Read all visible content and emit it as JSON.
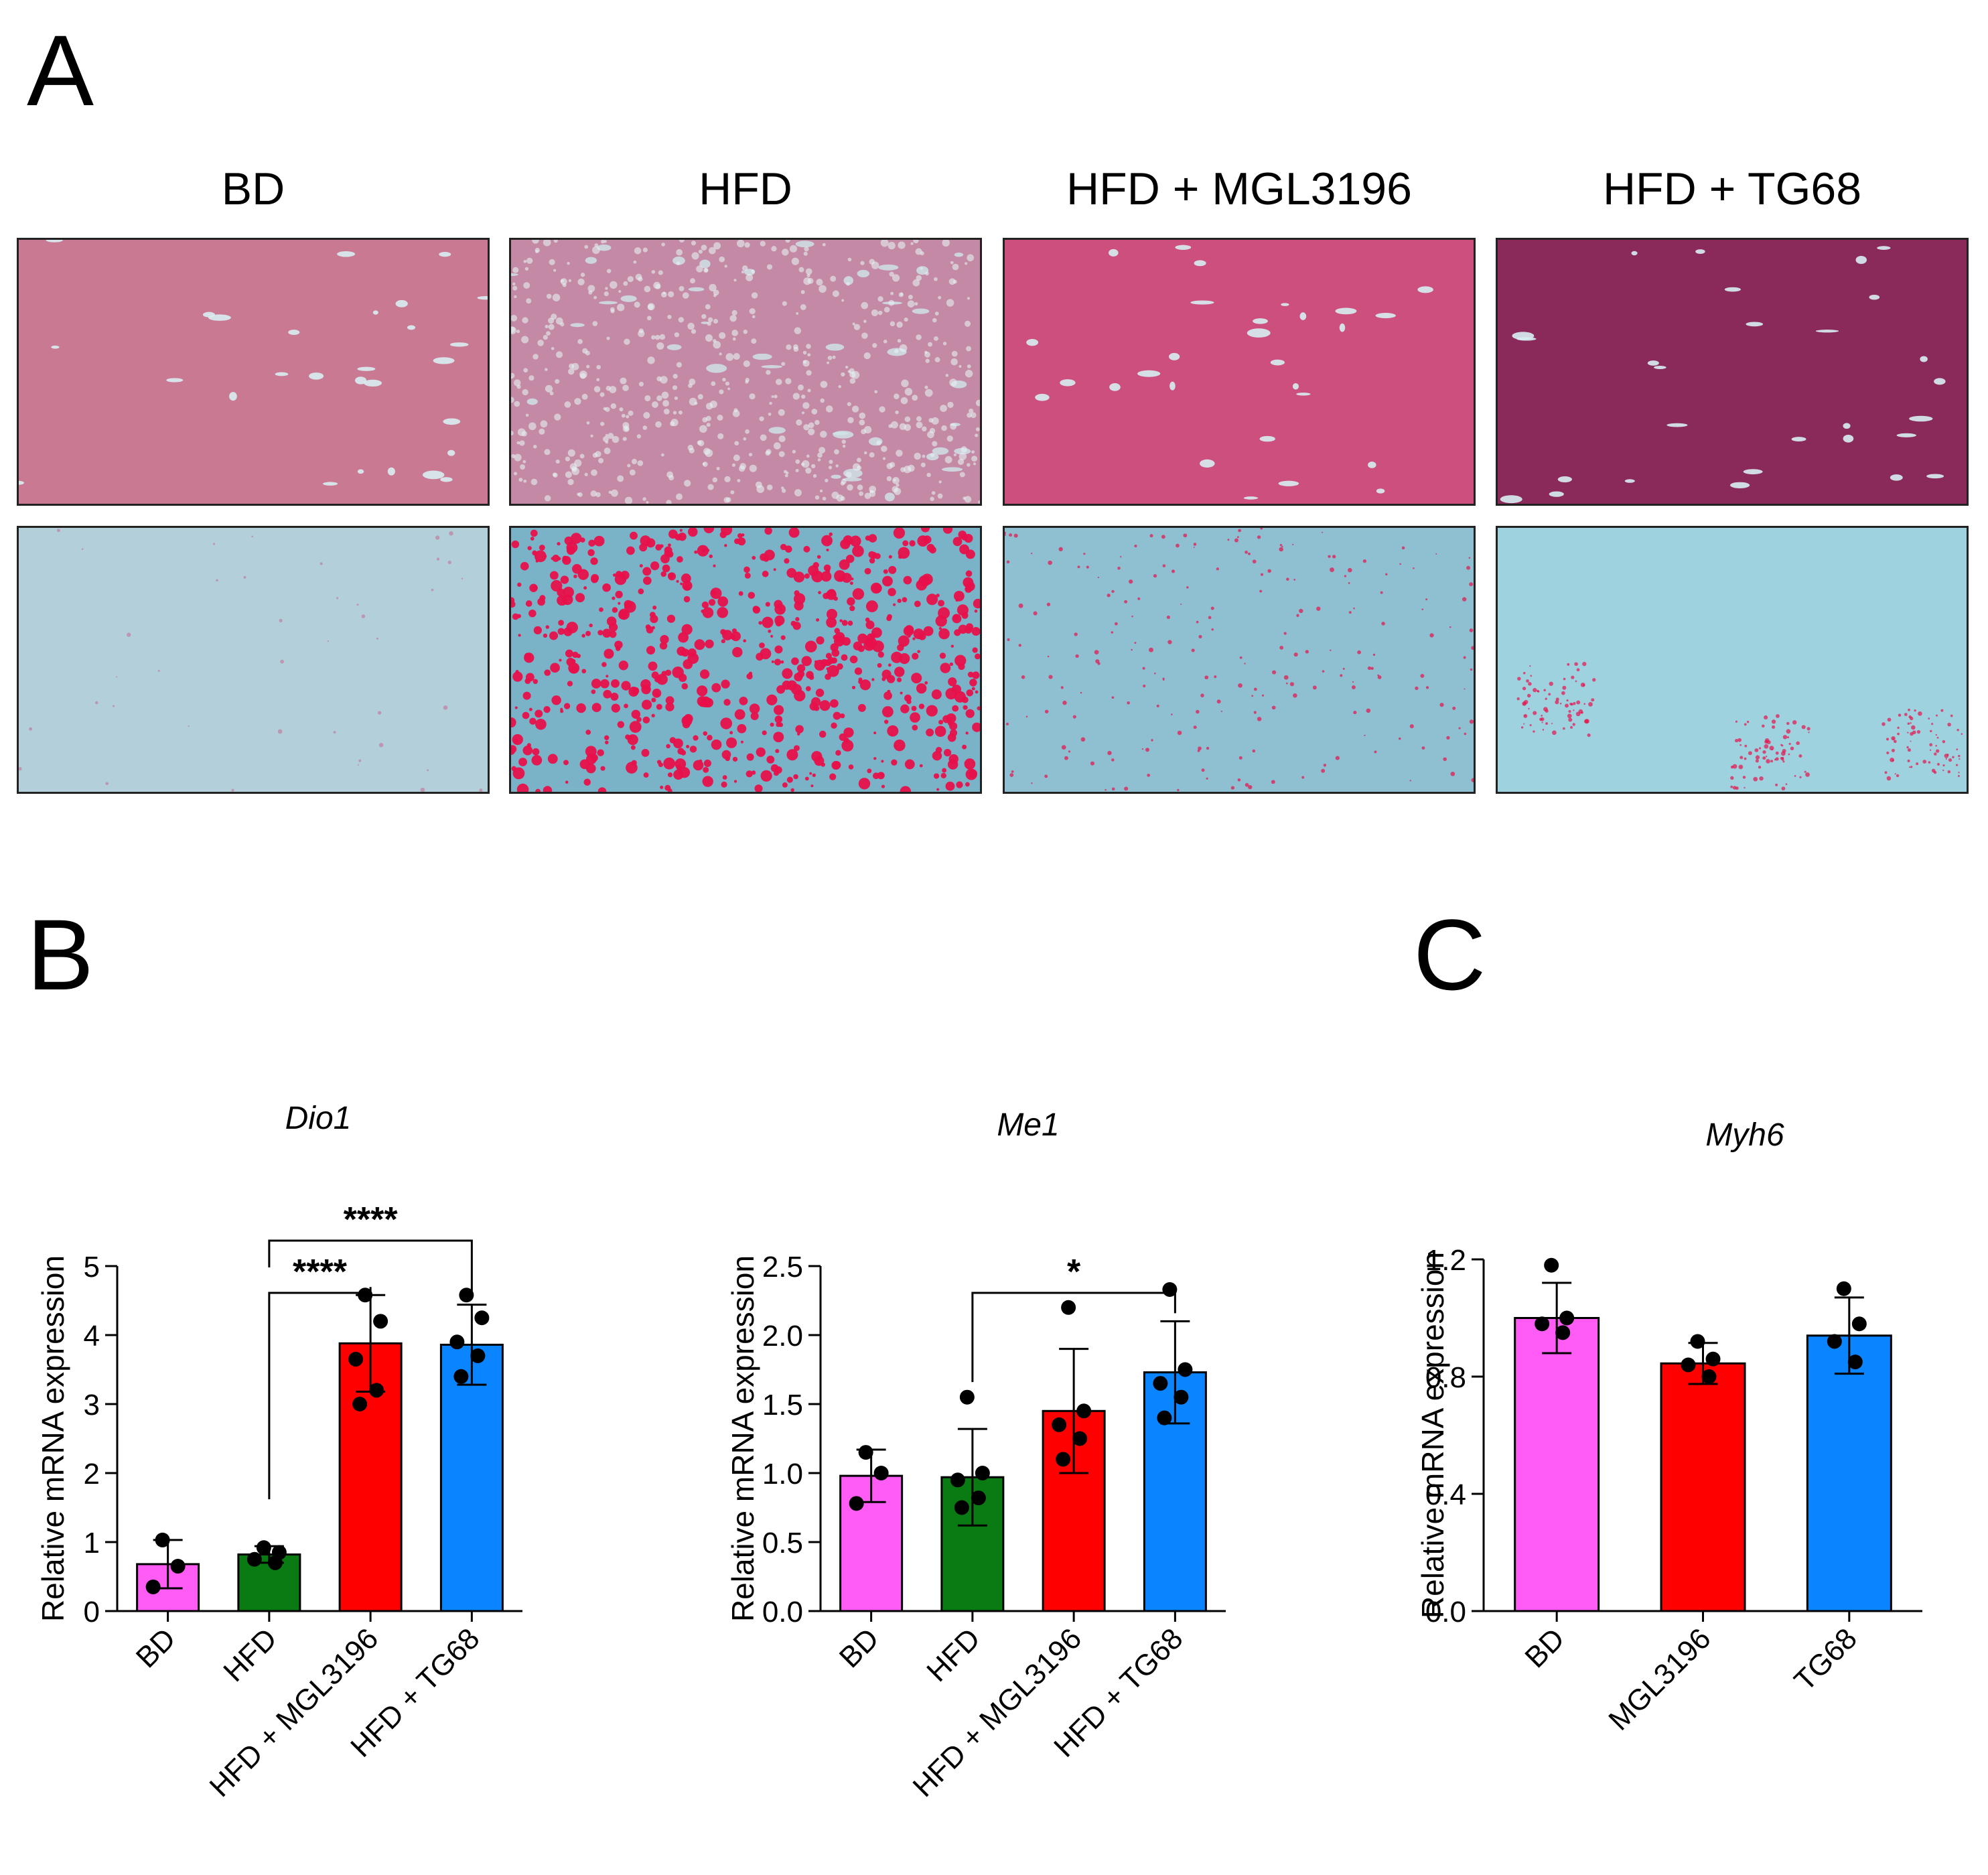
{
  "panels": {
    "A": {
      "letter": "A",
      "columns": [
        {
          "label": "BD",
          "tissue": "lightly stained, few small vessels"
        },
        {
          "label": "HFD",
          "tissue": "vacuolated, heavy lipid droplets"
        },
        {
          "label": "HFD + MGL3196",
          "tissue": "pink parenchyma, scattered vessels"
        },
        {
          "label": "HFD + TG68",
          "tissue": "dark magenta parenchyma, scattered vessels"
        }
      ],
      "rows": [
        "H&E-like stain",
        "lipid stain"
      ]
    },
    "B": {
      "letter": "B"
    },
    "C": {
      "letter": "C"
    }
  },
  "colors": {
    "BD": "#ff5cf5",
    "HFD": "#0a7a12",
    "MGL3196": "#ff0000",
    "TG68": "#0a84ff"
  },
  "chart_data": [
    {
      "panel": "B",
      "type": "bar",
      "title": "Dio1",
      "ylabel": "Relative mRNA expression",
      "categories": [
        "BD",
        "HFD",
        "HFD + MGL3196",
        "HFD + TG68"
      ],
      "values": [
        0.68,
        0.82,
        3.88,
        3.86
      ],
      "errors": [
        0.35,
        0.12,
        0.7,
        0.58
      ],
      "points": [
        [
          1.03,
          0.65,
          0.35
        ],
        [
          0.92,
          0.85,
          0.75,
          0.7
        ],
        [
          4.58,
          4.2,
          3.65,
          3.2,
          3.0
        ],
        [
          4.58,
          4.25,
          3.9,
          3.7,
          3.4
        ]
      ],
      "colors": [
        "#ff5cf5",
        "#0a7a12",
        "#ff0000",
        "#0a84ff"
      ],
      "ylim": [
        0,
        5
      ],
      "yticks": [
        "0",
        "1",
        "2",
        "3",
        "4",
        "5"
      ],
      "significance": [
        {
          "from": "HFD",
          "to": "HFD + MGL3196",
          "label": "****"
        },
        {
          "from": "HFD",
          "to": "HFD + TG68",
          "label": "****"
        }
      ]
    },
    {
      "panel": "B",
      "type": "bar",
      "title": "Me1",
      "ylabel": "Relative mRNA expression",
      "categories": [
        "BD",
        "HFD",
        "HFD + MGL3196",
        "HFD + TG68"
      ],
      "values": [
        0.98,
        0.97,
        1.45,
        1.73
      ],
      "errors": [
        0.19,
        0.35,
        0.45,
        0.37
      ],
      "points": [
        [
          1.15,
          1.0,
          0.78
        ],
        [
          1.55,
          1.0,
          0.95,
          0.82,
          0.75
        ],
        [
          2.2,
          1.45,
          1.35,
          1.25,
          1.1
        ],
        [
          2.33,
          1.75,
          1.65,
          1.55,
          1.4
        ]
      ],
      "colors": [
        "#ff5cf5",
        "#0a7a12",
        "#ff0000",
        "#0a84ff"
      ],
      "ylim": [
        0,
        2.5
      ],
      "yticks": [
        "0.0",
        "0.5",
        "1.0",
        "1.5",
        "2.0",
        "2.5"
      ],
      "significance": [
        {
          "from": "HFD",
          "to": "HFD + TG68",
          "label": "*"
        }
      ]
    },
    {
      "panel": "C",
      "type": "bar",
      "title": "Myh6",
      "ylabel": "Relative mRNA expression",
      "categories": [
        "BD",
        "MGL3196",
        "TG68"
      ],
      "values": [
        1.0,
        0.845,
        0.94
      ],
      "errors": [
        0.12,
        0.07,
        0.13
      ],
      "points": [
        [
          1.18,
          1.0,
          0.98,
          0.95
        ],
        [
          0.92,
          0.86,
          0.84,
          0.8
        ],
        [
          1.1,
          0.98,
          0.92,
          0.85
        ]
      ],
      "colors": [
        "#ff5cf5",
        "#ff0000",
        "#0a84ff"
      ],
      "ylim": [
        0,
        1.2
      ],
      "yticks": [
        "0.0",
        "0.4",
        "0.8",
        "1.2"
      ],
      "significance": []
    }
  ]
}
